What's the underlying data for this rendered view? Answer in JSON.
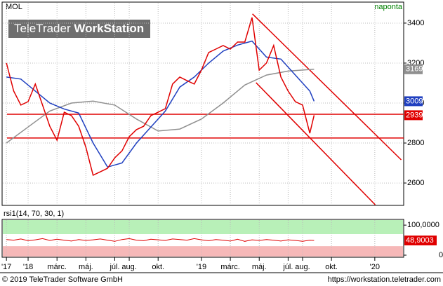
{
  "header": {
    "symbol": "MOL",
    "interval": "naponta"
  },
  "watermark": {
    "brand": "TeleTrader",
    "product": "WorkStation"
  },
  "footer": {
    "copyright": "© 2019 TeleTrader Software GmbH",
    "url": "https://workstation.teletrader.com"
  },
  "chart_data": [
    {
      "type": "line",
      "grid": true,
      "xlim": [
        -1.8,
        26
      ],
      "ylim": [
        2488,
        3505
      ],
      "xticks": [
        {
          "value": -1.5,
          "label": "'17"
        },
        {
          "value": 0,
          "label": "'18"
        },
        {
          "value": 2,
          "label": "márc."
        },
        {
          "value": 4,
          "label": "máj."
        },
        {
          "value": 6,
          "label": "júl."
        },
        {
          "value": 7,
          "label": "aug."
        },
        {
          "value": 9,
          "label": "okt."
        },
        {
          "value": 12,
          "label": "'19"
        },
        {
          "value": 14,
          "label": "márc."
        },
        {
          "value": 16,
          "label": "máj."
        },
        {
          "value": 18,
          "label": "júl."
        },
        {
          "value": 19,
          "label": "aug."
        },
        {
          "value": 21,
          "label": "okt."
        },
        {
          "value": 24,
          "label": "'20"
        }
      ],
      "yticks": [
        2600,
        2800,
        3000,
        3200,
        3400
      ],
      "series": [
        {
          "color": "#e00000",
          "x": [
            -1.5,
            -1,
            -0.5,
            0,
            0.5,
            1,
            1.5,
            2,
            2.5,
            3,
            3.5,
            4,
            4.5,
            5,
            5.5,
            6,
            6.5,
            7,
            7.5,
            8,
            8.5,
            9,
            9.5,
            10,
            10.5,
            11,
            11.5,
            12,
            12.5,
            13,
            13.5,
            14,
            14.5,
            15,
            15.5,
            16,
            16.5,
            17,
            17.5,
            18,
            18.5,
            19,
            19.5,
            19.8
          ],
          "values": [
            3200,
            3060,
            2990,
            3007,
            3095,
            2990,
            2884,
            2814,
            2954,
            2937,
            2884,
            2779,
            2639,
            2656,
            2674,
            2726,
            2761,
            2832,
            2867,
            2884,
            2937,
            2954,
            2972,
            3095,
            3130,
            3112,
            3095,
            3165,
            3253,
            3270,
            3288,
            3270,
            3305,
            3305,
            3428,
            3165,
            3200,
            3288,
            3130,
            3060,
            3007,
            2990,
            2849,
            2939
          ]
        },
        {
          "color": "#2040c0",
          "x": [
            -1.5,
            -0.5,
            0.5,
            1.5,
            2.5,
            3.5,
            4.5,
            5.5,
            6.5,
            7.5,
            8.5,
            9.5,
            10.5,
            11.5,
            12.5,
            13.5,
            14.5,
            15.5,
            16.5,
            17.5,
            18.5,
            19.5,
            19.8
          ],
          "values": [
            3130,
            3120,
            3060,
            3000,
            2970,
            2950,
            2800,
            2680,
            2700,
            2800,
            2880,
            2960,
            3080,
            3130,
            3200,
            3260,
            3290,
            3310,
            3230,
            3220,
            3140,
            3060,
            3009
          ]
        },
        {
          "color": "#909090",
          "x": [
            -1.5,
            0,
            1.5,
            3,
            4.5,
            6,
            7.5,
            9,
            10.5,
            12,
            13.5,
            15,
            16.5,
            18,
            19.8
          ],
          "values": [
            2800,
            2880,
            2960,
            3000,
            3010,
            2990,
            2920,
            2860,
            2870,
            2920,
            3000,
            3090,
            3140,
            3160,
            3169
          ]
        }
      ],
      "hlines": [
        2944,
        2825
      ],
      "trendlines": [
        {
          "x": [
            15.53,
            25.83
          ],
          "y": [
            3446,
            2716
          ]
        },
        {
          "x": [
            15.78,
            24.03
          ],
          "y": [
            3102,
            2491
          ]
        }
      ],
      "line_color": "#e00000"
    },
    {
      "type": "line",
      "title": "rsi1(14, 70, 30, 1)",
      "ylim": [
        -7,
        119
      ],
      "yticks": [
        {
          "value": 100,
          "label": "100,0000"
        },
        0
      ],
      "upper_band": 70,
      "lower_band": 30,
      "color": "#e00000",
      "x": [
        -1.5,
        -1,
        -0.5,
        0,
        0.5,
        1,
        1.5,
        2,
        2.5,
        3,
        3.5,
        4,
        4.5,
        5,
        5.5,
        6,
        6.5,
        7,
        7.5,
        8,
        8.5,
        9,
        9.5,
        10,
        10.5,
        11,
        11.5,
        12,
        12.5,
        13,
        13.5,
        14,
        14.5,
        15,
        15.5,
        16,
        16.5,
        17,
        17.5,
        18,
        18.5,
        19,
        19.5,
        19.8
      ],
      "values": [
        52,
        50,
        54,
        48,
        51,
        55,
        49,
        53,
        50,
        47,
        52,
        49,
        51,
        54,
        50,
        46,
        52,
        55,
        50,
        48,
        53,
        51,
        49,
        54,
        52,
        50,
        55,
        51,
        48,
        52,
        50,
        47,
        53,
        46,
        51,
        49,
        52,
        50,
        47,
        51,
        49,
        46,
        50,
        48.9003
      ],
      "last": {
        "value": 48.9003,
        "label": "48,9003"
      }
    }
  ]
}
